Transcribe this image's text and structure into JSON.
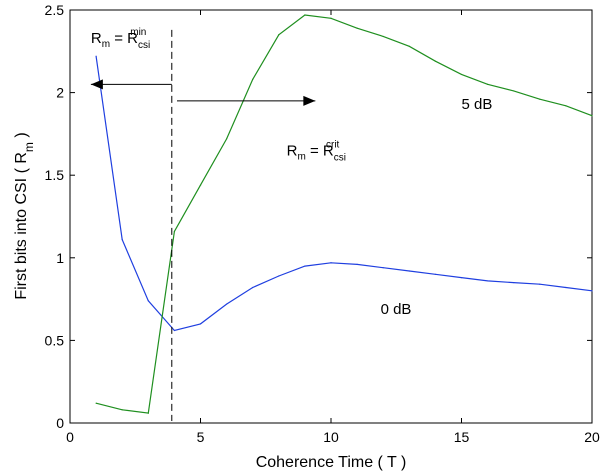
{
  "chart_data": {
    "type": "line",
    "title": "",
    "xlabel": "Coherence Time ( T )",
    "ylabel_main": "First  bits into CSI ( R",
    "ylabel_sub": "m",
    "ylabel_close": " )",
    "xlim": [
      0,
      20
    ],
    "ylim": [
      0,
      2.5
    ],
    "xticks": [
      0,
      5,
      10,
      15,
      20
    ],
    "yticks": [
      0,
      0.5,
      1,
      1.5,
      2,
      2.5
    ],
    "xtick_labels": [
      "0",
      "5",
      "10",
      "15",
      "20"
    ],
    "ytick_labels": [
      "0",
      "0.5",
      "1",
      "1.5",
      "2",
      "2.5"
    ],
    "grid": false,
    "series": [
      {
        "name": "0 dB",
        "color": "#1f3fe0",
        "points": [
          [
            1,
            2.22
          ],
          [
            2,
            1.11
          ],
          [
            3,
            0.74
          ],
          [
            4,
            0.56
          ],
          [
            5,
            0.6
          ],
          [
            6,
            0.72
          ],
          [
            7,
            0.82
          ],
          [
            8,
            0.89
          ],
          [
            9,
            0.95
          ],
          [
            10,
            0.97
          ],
          [
            11,
            0.96
          ],
          [
            12,
            0.94
          ],
          [
            13,
            0.92
          ],
          [
            14,
            0.9
          ],
          [
            15,
            0.88
          ],
          [
            16,
            0.86
          ],
          [
            17,
            0.85
          ],
          [
            18,
            0.84
          ],
          [
            19,
            0.82
          ],
          [
            20,
            0.8
          ]
        ]
      },
      {
        "name": "5 dB",
        "color": "#1f8f1f",
        "points": [
          [
            1,
            0.12
          ],
          [
            2,
            0.08
          ],
          [
            3,
            0.06
          ],
          [
            4,
            1.16
          ],
          [
            5,
            1.44
          ],
          [
            6,
            1.72
          ],
          [
            7,
            2.08
          ],
          [
            8,
            2.35
          ],
          [
            9,
            2.47
          ],
          [
            10,
            2.45
          ],
          [
            11,
            2.39
          ],
          [
            12,
            2.34
          ],
          [
            13,
            2.28
          ],
          [
            14,
            2.19
          ],
          [
            15,
            2.11
          ],
          [
            16,
            2.05
          ],
          [
            17,
            2.01
          ],
          [
            18,
            1.96
          ],
          [
            19,
            1.92
          ],
          [
            20,
            1.86
          ]
        ]
      }
    ],
    "vline": {
      "x": 3.9,
      "style": "dashed"
    },
    "arrows": [
      {
        "name": "arrow-left",
        "from": [
          3.9,
          2.05
        ],
        "to": [
          0.8,
          2.05
        ]
      },
      {
        "name": "arrow-right",
        "from": [
          4.1,
          1.95
        ],
        "to": [
          9.4,
          1.95
        ]
      }
    ],
    "annotations": [
      {
        "name": "label-5db",
        "text": "5 dB",
        "x": 15.0,
        "y": 1.9
      },
      {
        "name": "label-0db",
        "text": "0 dB",
        "x": 11.9,
        "y": 0.66
      }
    ],
    "formula_min": {
      "r": "R",
      "r_sub": "m",
      "eq": " = R",
      "csi_sub": "csi",
      "sup": "min",
      "x": 0.8,
      "y": 2.3
    },
    "formula_crit": {
      "r": "R",
      "r_sub": "m",
      "eq": " = R",
      "csi_sub": "csi",
      "sup": "crit",
      "x": 8.3,
      "y": 1.62
    }
  }
}
